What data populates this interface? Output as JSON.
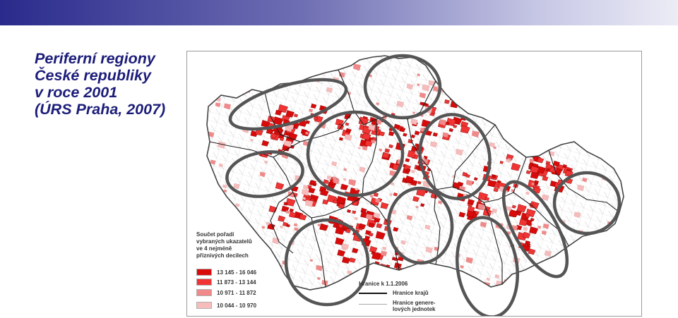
{
  "slide": {
    "title_lines": [
      "Periferní regiony",
      "České republiky",
      "v roce 2001",
      "(ÚRS Praha, 2007)"
    ],
    "accent_color": "#1d1d7a"
  },
  "map": {
    "legend": {
      "title_lines": [
        "Součet pořadí",
        "vybraných ukazatelů",
        "ve 4 nejméně",
        "příznivých decilech"
      ],
      "classes": [
        {
          "label": "13 145 - 16 046",
          "color": "#d90a0a"
        },
        {
          "label": "11 873 - 13 144",
          "color": "#f03333"
        },
        {
          "label": "10 971 - 11 872",
          "color": "#f08a8a"
        },
        {
          "label": "10 044 - 10 970",
          "color": "#f6bcbc"
        }
      ]
    },
    "boundaries": {
      "title": "Hranice k 1.1.2006",
      "items": [
        {
          "label_lines": [
            "Hranice krajů"
          ],
          "style": "solid-black"
        },
        {
          "label_lines": [
            "Hranice genere-",
            "lových jednotek"
          ],
          "style": "thin-grey"
        }
      ]
    },
    "highlighted_regions": 11,
    "outline_color": "#555555"
  }
}
